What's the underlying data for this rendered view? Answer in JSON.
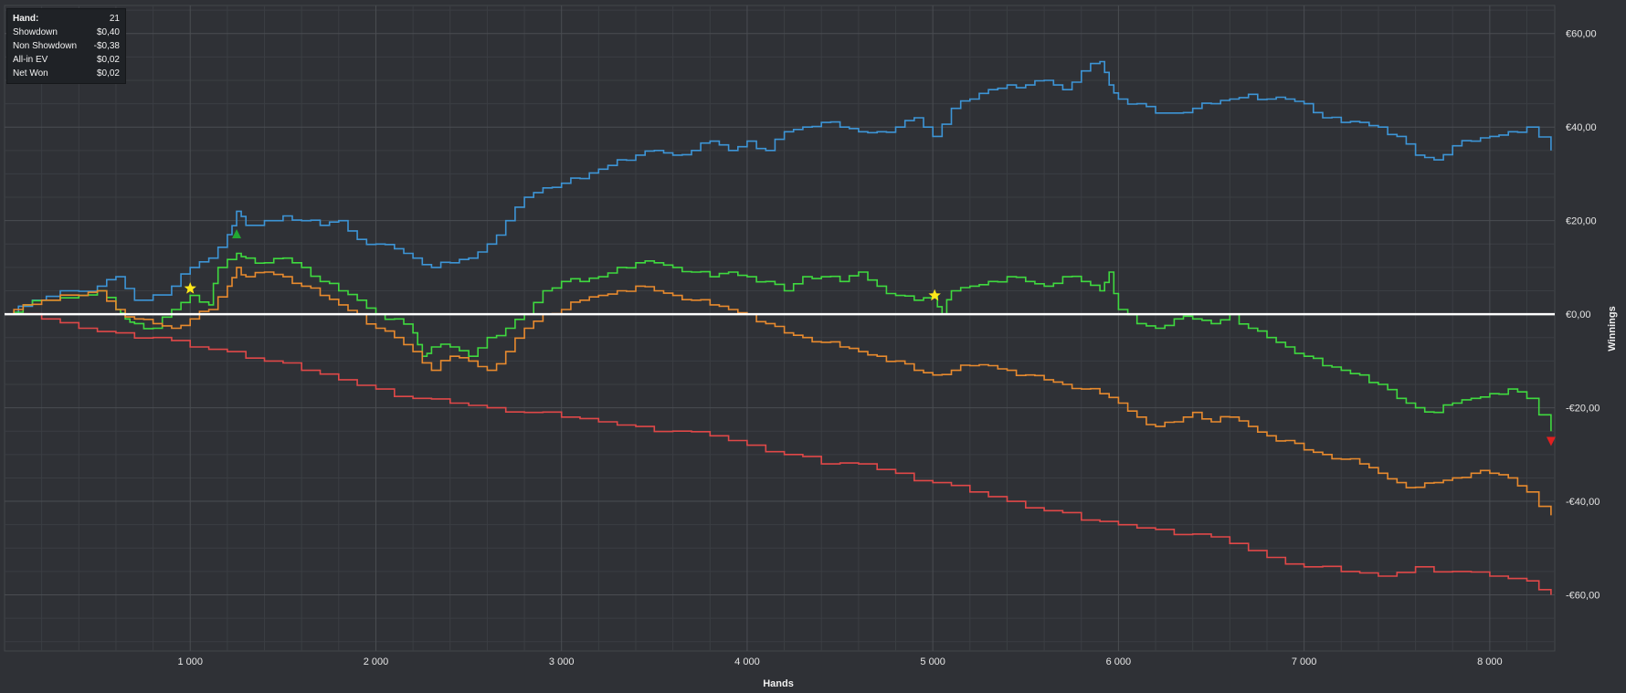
{
  "stats_box": {
    "rows": [
      {
        "label": "Hand:",
        "value": "21"
      },
      {
        "label": "Showdown",
        "value": "$0,40"
      },
      {
        "label": "Non Showdown",
        "value": "-$0,38"
      },
      {
        "label": "All-in EV",
        "value": "$0,02"
      },
      {
        "label": "Net Won",
        "value": "$0,02"
      }
    ]
  },
  "colors": {
    "background": "#2f3136",
    "grid": "#4a4d52",
    "zero_line": "#ffffff",
    "blue": "#3d95d6",
    "green": "#3fd93f",
    "orange": "#e88a2e",
    "red": "#e04848"
  },
  "chart_data": {
    "type": "line",
    "xlabel": "Hands",
    "ylabel": "Winnings",
    "xlim": [
      0,
      8350
    ],
    "ylim": [
      -72,
      66
    ],
    "x_ticks": [
      1000,
      2000,
      3000,
      4000,
      5000,
      6000,
      7000,
      8000
    ],
    "x_tick_labels": [
      "1 000",
      "2 000",
      "3 000",
      "4 000",
      "5 000",
      "6 000",
      "7 000",
      "8 000"
    ],
    "y_ticks": [
      60,
      40,
      20,
      0,
      -20,
      -40,
      -60
    ],
    "y_tick_labels": [
      "€60,00",
      "€40,00",
      "€20,00",
      "€0,00",
      "-€20,00",
      "-€40,00",
      "-€60,00"
    ],
    "grid": true,
    "series": [
      {
        "color": "#3d95d6",
        "x": [
          0,
          150,
          300,
          500,
          600,
          700,
          900,
          1000,
          1100,
          1200,
          1250,
          1300,
          1500,
          1600,
          1700,
          1800,
          1900,
          2000,
          2100,
          2200,
          2300,
          2400,
          2500,
          2600,
          2700,
          2800,
          2900,
          3000,
          3100,
          3200,
          3300,
          3400,
          3500,
          3600,
          3700,
          3800,
          3900,
          4000,
          4100,
          4200,
          4300,
          4400,
          4500,
          4600,
          4700,
          4800,
          4900,
          5000,
          5100,
          5200,
          5300,
          5400,
          5500,
          5600,
          5700,
          5800,
          5900,
          5950,
          6000,
          6100,
          6200,
          6300,
          6400,
          6500,
          6600,
          6700,
          6800,
          6900,
          7000,
          7100,
          7200,
          7300,
          7400,
          7500,
          7600,
          7700,
          7800,
          7900,
          8000,
          8100,
          8200,
          8330
        ],
        "y": [
          0,
          3,
          5,
          6,
          8,
          3,
          6,
          10,
          12,
          17,
          22,
          19,
          21,
          20,
          19,
          20,
          16,
          15,
          14,
          12,
          10,
          11,
          12,
          15,
          20,
          25,
          27,
          28,
          29,
          31,
          33,
          34,
          35,
          34,
          35,
          37,
          35,
          37,
          35,
          39,
          40,
          41,
          40,
          39,
          39,
          40,
          42,
          38,
          44,
          46,
          48,
          49,
          49,
          50,
          48,
          52,
          54,
          49,
          46,
          45,
          43,
          43,
          44,
          45,
          46,
          47,
          46,
          46,
          45,
          42,
          41,
          41,
          40,
          38,
          34,
          33,
          36,
          37,
          38,
          39,
          40,
          35
        ]
      },
      {
        "color": "#3fd93f",
        "x": [
          0,
          100,
          200,
          400,
          500,
          600,
          650,
          700,
          800,
          900,
          1000,
          1100,
          1150,
          1250,
          1300,
          1400,
          1500,
          1600,
          1700,
          1800,
          1900,
          2000,
          2100,
          2200,
          2250,
          2300,
          2400,
          2500,
          2600,
          2700,
          2800,
          2900,
          3000,
          3100,
          3200,
          3300,
          3400,
          3500,
          3600,
          3700,
          3800,
          3900,
          4000,
          4100,
          4200,
          4300,
          4400,
          4500,
          4600,
          4700,
          4800,
          4900,
          5000,
          5050,
          5100,
          5200,
          5300,
          5400,
          5500,
          5600,
          5700,
          5800,
          5900,
          5950,
          6000,
          6100,
          6200,
          6300,
          6400,
          6500,
          6600,
          6700,
          6800,
          6900,
          7000,
          7100,
          7200,
          7300,
          7400,
          7500,
          7600,
          7700,
          7800,
          7900,
          8000,
          8100,
          8200,
          8330
        ],
        "y": [
          0,
          2,
          3,
          4,
          5,
          1,
          -1,
          -2,
          -3,
          1,
          4,
          2,
          10,
          13,
          12,
          11,
          12,
          10,
          7,
          5,
          3,
          0,
          -1,
          -4,
          -9,
          -7,
          -7,
          -9,
          -5,
          -3,
          0,
          5,
          7,
          7,
          8,
          10,
          11,
          11,
          10,
          9,
          8,
          9,
          8,
          7,
          5,
          8,
          8,
          7,
          9,
          6,
          4,
          3,
          4,
          0,
          5,
          6,
          7,
          8,
          7,
          6,
          8,
          7,
          5,
          9,
          1,
          -2,
          -3,
          -1,
          -1,
          -2,
          0,
          -3,
          -5,
          -7,
          -9,
          -11,
          -12,
          -13,
          -15,
          -18,
          -20,
          -21,
          -19,
          -18,
          -17,
          -16,
          -18,
          -25
        ]
      },
      {
        "color": "#e88a2e",
        "x": [
          0,
          100,
          200,
          400,
          500,
          600,
          700,
          800,
          900,
          1000,
          1100,
          1200,
          1250,
          1300,
          1400,
          1500,
          1600,
          1700,
          1800,
          1900,
          2000,
          2100,
          2200,
          2300,
          2400,
          2500,
          2600,
          2700,
          2800,
          2900,
          3000,
          3100,
          3200,
          3300,
          3400,
          3500,
          3600,
          3700,
          3800,
          3900,
          4000,
          4100,
          4200,
          4300,
          4400,
          4500,
          4600,
          4700,
          4800,
          4900,
          5000,
          5100,
          5200,
          5300,
          5400,
          5500,
          5600,
          5700,
          5800,
          5900,
          6000,
          6100,
          6200,
          6300,
          6400,
          6500,
          6600,
          6700,
          6800,
          6900,
          7000,
          7100,
          7200,
          7300,
          7400,
          7500,
          7600,
          7700,
          7800,
          7900,
          8000,
          8100,
          8200,
          8330
        ],
        "y": [
          0,
          2,
          3,
          4,
          5,
          1,
          -1,
          -2,
          -3,
          -1,
          1,
          6,
          10,
          8,
          9,
          8,
          6,
          4,
          2,
          0,
          -3,
          -5,
          -8,
          -12,
          -9,
          -10,
          -12,
          -8,
          -3,
          0,
          1,
          3,
          4,
          5,
          6,
          5,
          4,
          3,
          2,
          1,
          0,
          -2,
          -4,
          -5,
          -6,
          -7,
          -8,
          -9,
          -10,
          -12,
          -13,
          -12,
          -11,
          -11,
          -12,
          -13,
          -14,
          -15,
          -16,
          -17,
          -19,
          -22,
          -24,
          -23,
          -21,
          -23,
          -22,
          -24,
          -26,
          -27,
          -29,
          -30,
          -31,
          -32,
          -34,
          -36,
          -37,
          -36,
          -35,
          -34,
          -34,
          -35,
          -38,
          -43
        ]
      },
      {
        "color": "#e04848",
        "x": [
          0,
          200,
          400,
          600,
          800,
          1000,
          1200,
          1400,
          1600,
          1800,
          2000,
          2200,
          2400,
          2600,
          2800,
          3000,
          3200,
          3400,
          3600,
          3800,
          4000,
          4200,
          4400,
          4600,
          4800,
          5000,
          5200,
          5400,
          5600,
          5800,
          6000,
          6200,
          6400,
          6600,
          6800,
          7000,
          7200,
          7400,
          7600,
          7800,
          8000,
          8200,
          8330
        ],
        "y": [
          0,
          -1,
          -3,
          -4,
          -5,
          -7,
          -8,
          -10,
          -12,
          -14,
          -16,
          -18,
          -19,
          -20,
          -21,
          -22,
          -23,
          -24,
          -25,
          -26,
          -28,
          -30,
          -32,
          -32,
          -34,
          -36,
          -38,
          -40,
          -42,
          -44,
          -45,
          -46,
          -47,
          -49,
          -52,
          -54,
          -55,
          -56,
          -54,
          -55,
          -56,
          -57,
          -60
        ]
      }
    ],
    "markers": [
      {
        "type": "star",
        "color": "#ffe81a",
        "x": 1000,
        "y": 5.5
      },
      {
        "type": "triangle-up",
        "color": "#22a832",
        "x": 1250,
        "y": 17
      },
      {
        "type": "star",
        "color": "#ffe81a",
        "x": 5010,
        "y": 4
      },
      {
        "type": "triangle-down",
        "color": "#e02020",
        "x": 8330,
        "y": -27
      }
    ]
  }
}
